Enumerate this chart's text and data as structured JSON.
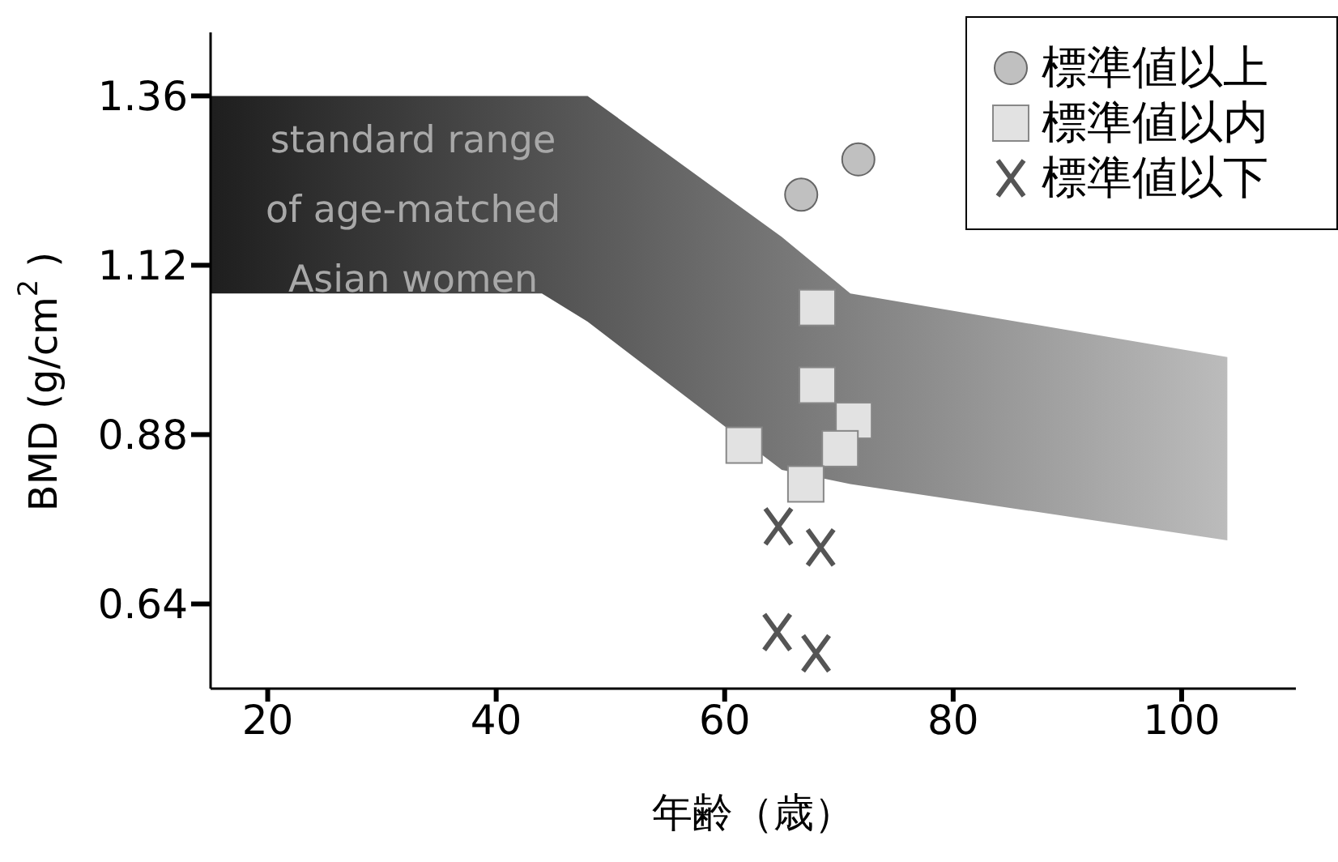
{
  "chart_data": {
    "type": "scatter",
    "xlabel": "年齢（歳）",
    "ylabel": "BMD (g/cm$^{2}$)",
    "xlim": [
      15,
      110
    ],
    "xticks": [
      20,
      40,
      60,
      80,
      100
    ],
    "ylim": [
      0.52,
      1.45
    ],
    "yticks": [
      0.64,
      0.88,
      1.12,
      1.36
    ],
    "grid": false,
    "legend": "top right",
    "annotations": [
      "standard range\nof age-matched\nAsian women"
    ],
    "series": [
      {
        "type": "area",
        "color": "#1e1e1e",
        "x": [
          15,
          44,
          48,
          65,
          71,
          104
        ],
        "values": [
          null,
          null,
          null,
          null,
          null,
          null
        ],
        "lower": [
          1.08,
          1.08,
          1.04,
          0.83,
          0.81,
          0.73
        ],
        "upper": [
          1.36,
          1.36,
          1.36,
          1.16,
          1.08,
          0.99
        ]
      },
      {
        "name": "標準値以上",
        "color": "#c0c0c0",
        "marker": "circle",
        "x": [
          66.7,
          71.7
        ],
        "values": [
          1.22,
          1.27
        ]
      },
      {
        "name": "標準値以内",
        "color": "#e2e2e2",
        "marker": "square",
        "x": [
          68.1,
          68.1,
          71.3,
          70.1,
          61.7,
          67.1
        ],
        "values": [
          1.06,
          0.95,
          0.9,
          0.86,
          0.865,
          0.81
        ]
      },
      {
        "name": "標準値以下",
        "color": "#555555",
        "marker": "cross",
        "x": [
          64.7,
          68.4,
          64.6,
          68
        ],
        "values": [
          0.75,
          0.72,
          0.6,
          0.57
        ]
      }
    ]
  }
}
